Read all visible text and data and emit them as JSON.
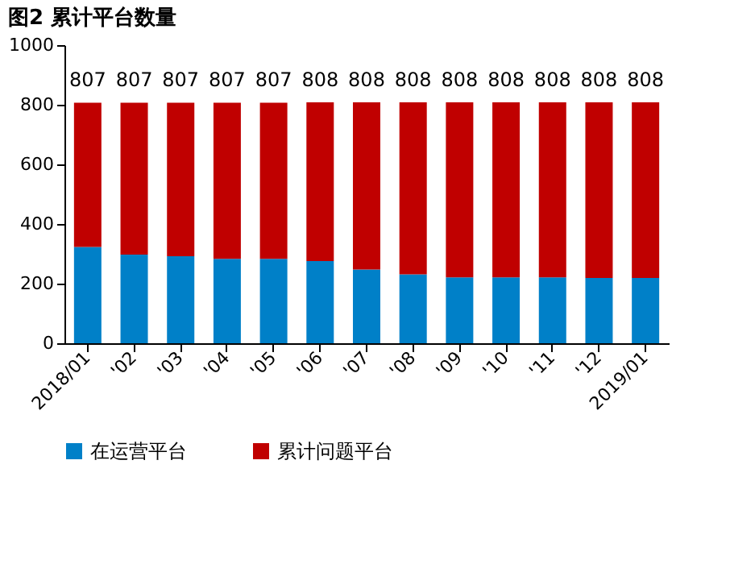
{
  "chart_data": {
    "type": "bar",
    "title": "图2  累计平台数量",
    "categories": [
      "2018/01",
      "'02",
      "'03",
      "'04",
      "'05",
      "'06",
      "'07",
      "'08",
      "'09",
      "'10",
      "'11",
      "'12",
      "2019/01"
    ],
    "stacked": true,
    "series": [
      {
        "name": "在运营平台",
        "color": "#0080c8",
        "values": [
          323,
          297,
          292,
          283,
          283,
          276,
          247,
          231,
          221,
          221,
          221,
          219,
          219
        ]
      },
      {
        "name": "累计问题平台",
        "color": "#c00000",
        "values": [
          484,
          510,
          515,
          524,
          524,
          532,
          561,
          577,
          587,
          587,
          587,
          589,
          589
        ]
      }
    ],
    "totals": [
      "807",
      "807",
      "807",
      "807",
      "807",
      "808",
      "808",
      "808",
      "808",
      "808",
      "808",
      "808",
      "808"
    ],
    "ylim": [
      0,
      1000
    ],
    "yticks": [
      0,
      200,
      400,
      600,
      800,
      1000
    ],
    "grid": false,
    "legend": "bottom"
  }
}
